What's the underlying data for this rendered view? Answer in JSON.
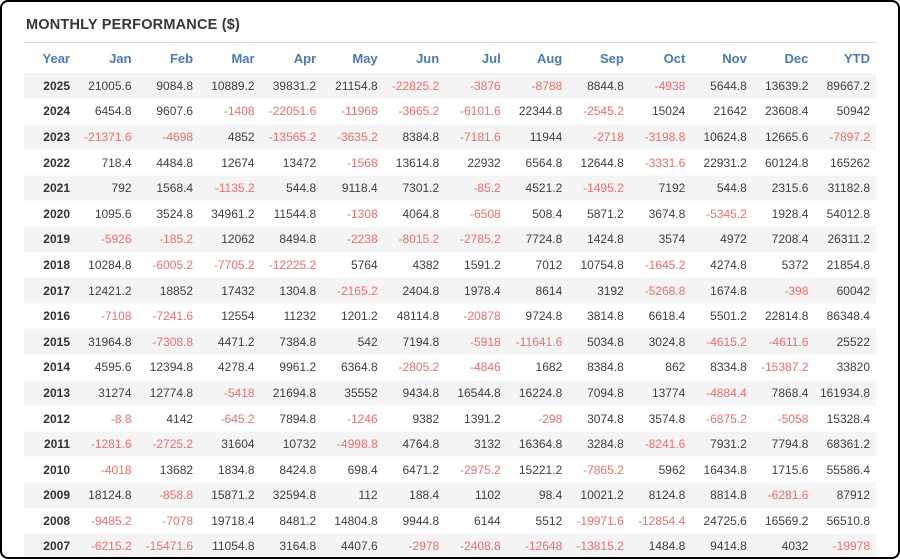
{
  "panel": {
    "title_note": "see chart_data.title"
  },
  "colors": {
    "header_text": "#4a7ab9",
    "title_text": "#33363b",
    "positive_value": "#3f3f3f",
    "negative_value": "#f26d6d",
    "row_stripe": "#f4f4f4",
    "divider": "#dcdcdc",
    "frame_border": "#000000"
  },
  "chart_data": {
    "type": "table",
    "title": "MONTHLY PERFORMANCE ($)",
    "columns": [
      "Year",
      "Jan",
      "Feb",
      "Mar",
      "Apr",
      "May",
      "Jun",
      "Jul",
      "Aug",
      "Sep",
      "Oct",
      "Nov",
      "Dec",
      "YTD"
    ],
    "rows": [
      {
        "year": "2025",
        "values": [
          "21005.6",
          "9084.8",
          "10889.2",
          "39831.2",
          "21154.8",
          "-22825.2",
          "-3876",
          "-8788",
          "8844.8",
          "-4938",
          "5644.8",
          "13639.2",
          "89667.2"
        ]
      },
      {
        "year": "2024",
        "values": [
          "6454.8",
          "9607.6",
          "-1408",
          "-22051.6",
          "-11968",
          "-3665.2",
          "-6101.6",
          "22344.8",
          "-2545.2",
          "15024",
          "21642",
          "23608.4",
          "50942"
        ]
      },
      {
        "year": "2023",
        "values": [
          "-21371.6",
          "-4698",
          "4852",
          "-13565.2",
          "-3635.2",
          "8384.8",
          "-7181.6",
          "11944",
          "-2718",
          "-3198.8",
          "10624.8",
          "12665.6",
          "-7897.2"
        ]
      },
      {
        "year": "2022",
        "values": [
          "718.4",
          "4484.8",
          "12674",
          "13472",
          "-1568",
          "13614.8",
          "22932",
          "6564.8",
          "12644.8",
          "-3331.6",
          "22931.2",
          "60124.8",
          "165262"
        ]
      },
      {
        "year": "2021",
        "values": [
          "792",
          "1568.4",
          "-1135.2",
          "544.8",
          "9118.4",
          "7301.2",
          "-85.2",
          "4521.2",
          "-1495.2",
          "7192",
          "544.8",
          "2315.6",
          "31182.8"
        ]
      },
      {
        "year": "2020",
        "values": [
          "1095.6",
          "3524.8",
          "34961.2",
          "11544.8",
          "-1308",
          "4064.8",
          "-6508",
          "508.4",
          "5871.2",
          "3674.8",
          "-5345.2",
          "1928.4",
          "54012.8"
        ]
      },
      {
        "year": "2019",
        "values": [
          "-5926",
          "-185.2",
          "12062",
          "8494.8",
          "-2238",
          "-8015.2",
          "-2785.2",
          "7724.8",
          "1424.8",
          "3574",
          "4972",
          "7208.4",
          "26311.2"
        ]
      },
      {
        "year": "2018",
        "values": [
          "10284.8",
          "-6005.2",
          "-7705.2",
          "-12225.2",
          "5764",
          "4382",
          "1591.2",
          "7012",
          "10754.8",
          "-1645.2",
          "4274.8",
          "5372",
          "21854.8"
        ]
      },
      {
        "year": "2017",
        "values": [
          "12421.2",
          "18852",
          "17432",
          "1304.8",
          "-2165.2",
          "2404.8",
          "1978.4",
          "8614",
          "3192",
          "-5268.8",
          "1674.8",
          "-398",
          "60042"
        ]
      },
      {
        "year": "2016",
        "values": [
          "-7108",
          "-7241.6",
          "12554",
          "11232",
          "1201.2",
          "48114.8",
          "-20878",
          "9724.8",
          "3814.8",
          "6618.4",
          "5501.2",
          "22814.8",
          "86348.4"
        ]
      },
      {
        "year": "2015",
        "values": [
          "31964.8",
          "-7308.8",
          "4471.2",
          "7384.8",
          "542",
          "7194.8",
          "-5918",
          "-11641.6",
          "5034.8",
          "3024.8",
          "-4615.2",
          "-4611.6",
          "25522"
        ]
      },
      {
        "year": "2014",
        "values": [
          "4595.6",
          "12394.8",
          "4278.4",
          "9961.2",
          "6364.8",
          "-2805.2",
          "-4846",
          "1682",
          "8384.8",
          "862",
          "8334.8",
          "-15387.2",
          "33820"
        ]
      },
      {
        "year": "2013",
        "values": [
          "31274",
          "12774.8",
          "-5418",
          "21694.8",
          "35552",
          "9434.8",
          "16544.8",
          "16224.8",
          "7094.8",
          "13774",
          "-4884.4",
          "7868.4",
          "161934.8"
        ]
      },
      {
        "year": "2012",
        "values": [
          "-8.8",
          "4142",
          "-645.2",
          "7894.8",
          "-1246",
          "9382",
          "1391.2",
          "-298",
          "3074.8",
          "3574.8",
          "-6875.2",
          "-5058",
          "15328.4"
        ]
      },
      {
        "year": "2011",
        "values": [
          "-1281.6",
          "-2725.2",
          "31604",
          "10732",
          "-4998.8",
          "4764.8",
          "3132",
          "16364.8",
          "3284.8",
          "-8241.6",
          "7931.2",
          "7794.8",
          "68361.2"
        ]
      },
      {
        "year": "2010",
        "values": [
          "-4018",
          "13682",
          "1834.8",
          "8424.8",
          "698.4",
          "6471.2",
          "-2975.2",
          "15221.2",
          "-7865.2",
          "5962",
          "16434.8",
          "1715.6",
          "55586.4"
        ]
      },
      {
        "year": "2009",
        "values": [
          "18124.8",
          "-858.8",
          "15871.2",
          "32594.8",
          "112",
          "188.4",
          "1102",
          "98.4",
          "10021.2",
          "8124.8",
          "8814.8",
          "-6281.6",
          "87912"
        ]
      },
      {
        "year": "2008",
        "values": [
          "-9485.2",
          "-7078",
          "19718.4",
          "8481.2",
          "14804.8",
          "9944.8",
          "6144",
          "5512",
          "-19971.6",
          "-12854.4",
          "24725.6",
          "16569.2",
          "56510.8"
        ]
      },
      {
        "year": "2007",
        "values": [
          "-6215.2",
          "-15471.6",
          "11054.8",
          "3164.8",
          "4407.6",
          "-2978",
          "-2408.8",
          "-12648",
          "-13815.2",
          "1484.8",
          "9414.8",
          "4032",
          "-19978"
        ]
      }
    ]
  }
}
